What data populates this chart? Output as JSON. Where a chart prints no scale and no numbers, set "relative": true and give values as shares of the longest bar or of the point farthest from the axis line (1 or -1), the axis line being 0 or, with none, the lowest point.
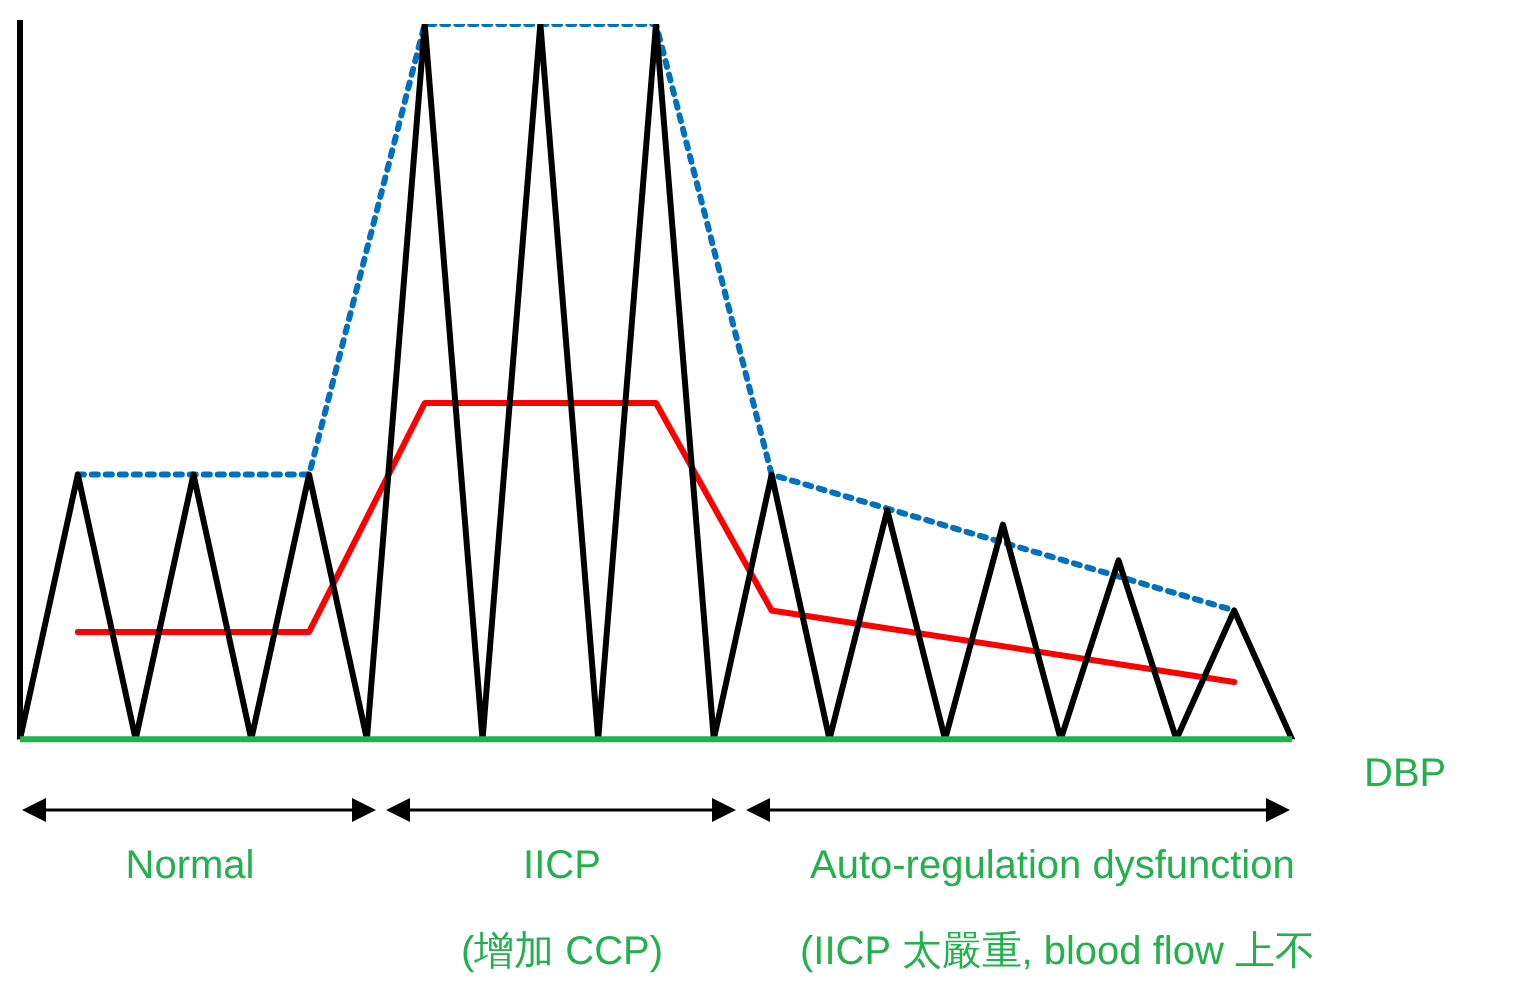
{
  "chart_data": {
    "type": "line",
    "relative": true,
    "xlabel": "DBP",
    "grid": false,
    "legend": false,
    "marker": "none",
    "categories": [
      null,
      null,
      null,
      null,
      null,
      null,
      null,
      null,
      null,
      null,
      null,
      null,
      null,
      null,
      null,
      null,
      null,
      null,
      null,
      null,
      null,
      null,
      null
    ],
    "series": [
      {
        "color": "#000000",
        "line_style": "solid",
        "values": [
          0,
          0.37,
          0,
          0.37,
          0,
          0.37,
          0,
          1,
          0,
          1,
          0,
          1,
          0,
          0.37,
          0,
          0.32,
          0,
          0.3,
          0,
          0.25,
          0,
          0.18,
          0
        ]
      },
      {
        "color": "#ff0000",
        "line_style": "solid",
        "values": [
          null,
          0.15,
          null,
          null,
          null,
          0.15,
          null,
          0.47,
          null,
          null,
          null,
          0.47,
          null,
          0.18,
          null,
          null,
          null,
          null,
          null,
          null,
          null,
          0.08,
          null
        ]
      },
      {
        "color": "#0070c0",
        "line_style": "dotted",
        "values": [
          null,
          0.37,
          null,
          null,
          null,
          0.37,
          null,
          1,
          null,
          null,
          null,
          1,
          null,
          0.37,
          null,
          null,
          null,
          null,
          null,
          null,
          null,
          0.18,
          null
        ]
      }
    ],
    "annotations": [
      "Normal",
      "IICP",
      "(增加 CCP)",
      "Auto-regulation dysfunction",
      "(IICP 太嚴重, blood flow 上不"
    ]
  }
}
